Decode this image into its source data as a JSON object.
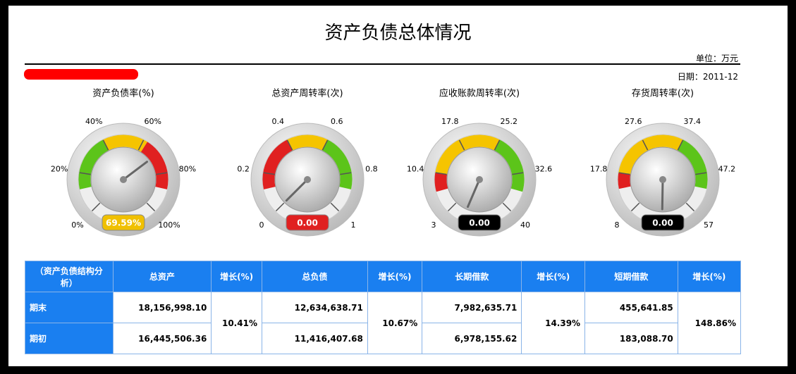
{
  "header": {
    "title": "资产负债总体情况",
    "unit": "单位：万元",
    "date": "日期：2011-12"
  },
  "gauges": [
    {
      "title": "资产负债率(%)",
      "ticks": [
        {
          "value": 0,
          "label": "0%"
        },
        {
          "value": 20,
          "label": "20%"
        },
        {
          "value": 40,
          "label": "40%"
        },
        {
          "value": 60,
          "label": "60%"
        },
        {
          "value": 80,
          "label": "80%"
        },
        {
          "value": 100,
          "label": "100%"
        }
      ],
      "value": 69.59,
      "value_label": "69.59%",
      "value_color": "#f0c000",
      "bands": [
        {
          "from": 12,
          "to": 40,
          "color": "#5cc41a"
        },
        {
          "from": 40,
          "to": 62,
          "color": "#f5c400"
        },
        {
          "from": 62,
          "to": 88,
          "color": "#e02020"
        }
      ]
    },
    {
      "title": "总资产周转率(次)",
      "ticks": [
        0,
        0.2,
        0.4,
        0.6,
        0.8,
        1
      ],
      "value": 0,
      "value_label": "0.00",
      "value_color": "#e02020",
      "bands": [
        {
          "from": 0.12,
          "to": 0.4,
          "color": "#e02020"
        },
        {
          "from": 0.4,
          "to": 0.6,
          "color": "#f5c400"
        },
        {
          "from": 0.6,
          "to": 0.88,
          "color": "#5cc41a"
        }
      ]
    },
    {
      "title": "应收账款周转率(次)",
      "ticks": [
        3,
        10.4,
        17.8,
        25.2,
        32.6,
        40
      ],
      "value": 0,
      "value_label": "0.00",
      "value_color": "#000000",
      "bands": [
        {
          "from": 7,
          "to": 10.4,
          "color": "#e02020"
        },
        {
          "from": 10.4,
          "to": 25.2,
          "color": "#f5c400"
        },
        {
          "from": 25.2,
          "to": 36,
          "color": "#5cc41a"
        }
      ]
    },
    {
      "title": "存货周转率(次)",
      "ticks": [
        8,
        17.8,
        27.6,
        37.4,
        47.2,
        57
      ],
      "value": 0,
      "value_label": "0.00",
      "value_color": "#000000",
      "bands": [
        {
          "from": 14,
          "to": 17.8,
          "color": "#e02020"
        },
        {
          "from": 17.8,
          "to": 37.4,
          "color": "#f5c400"
        },
        {
          "from": 37.4,
          "to": 51,
          "color": "#5cc41a"
        }
      ]
    }
  ],
  "table": {
    "header": [
      "（资产负债结构分析）",
      "总资产",
      "增长(%)",
      "总负债",
      "增长(%)",
      "长期借款",
      "增长(%)",
      "短期借款",
      "增长(%)"
    ],
    "rows": [
      [
        "期末",
        "18,156,998.10",
        "12,634,638.71",
        "7,982,635.71",
        "455,641.85"
      ],
      [
        "期初",
        "16,445,506.36",
        "11,416,407.68",
        "6,978,155.62",
        "183,088.70"
      ]
    ],
    "growth": [
      "10.41%",
      "10.67%",
      "14.39%",
      "148.86%"
    ]
  }
}
